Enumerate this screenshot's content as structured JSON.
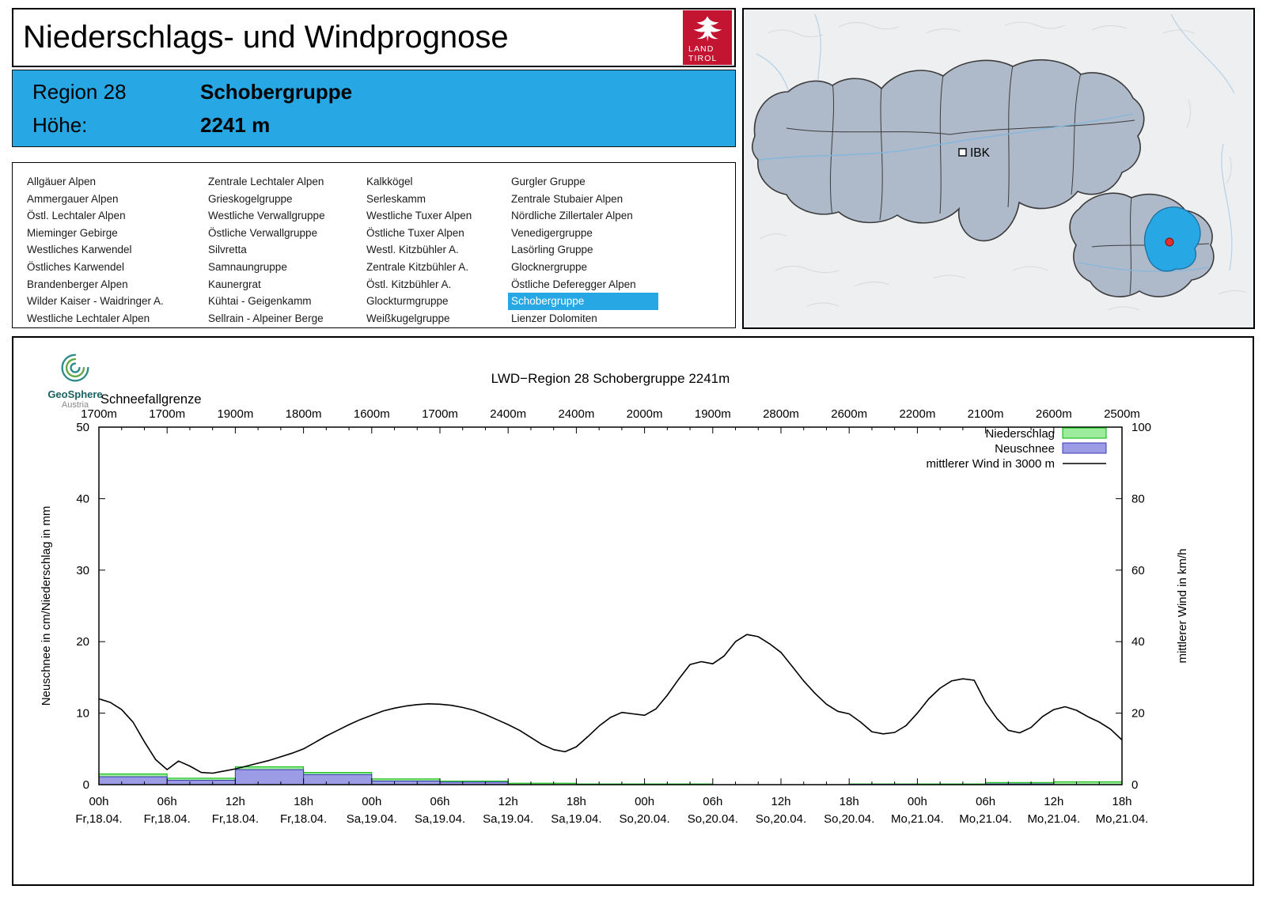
{
  "colors": {
    "accent": "#27A7E3",
    "brand_red": "#C31432"
  },
  "header": {
    "title": "Niederschlags- und Windprognose",
    "logo": {
      "line1": "LAND",
      "line2": "TIROL"
    }
  },
  "region_info": {
    "region_label": "Region 28",
    "region_name": "Schobergruppe",
    "altitude_label": "Höhe:",
    "altitude_value": "2241 m"
  },
  "region_list": {
    "selected": "Schobergruppe",
    "columns": [
      [
        "Allgäuer Alpen",
        "Ammergauer Alpen",
        "Östl. Lechtaler Alpen",
        "Mieminger Gebirge",
        "Westliches Karwendel",
        "Östliches Karwendel",
        "Brandenberger Alpen",
        "Wilder Kaiser - Waidringer A.",
        "Westliche Lechtaler Alpen"
      ],
      [
        "Zentrale Lechtaler Alpen",
        "Grieskogelgruppe",
        "Westliche Verwallgruppe",
        "Östliche Verwallgruppe",
        "Silvretta",
        "Samnaungruppe",
        "Kaunergrat",
        "Kühtai - Geigenkamm",
        "Sellrain - Alpeiner Berge"
      ],
      [
        "Kalkkögel",
        "Serleskamm",
        "Westliche Tuxer Alpen",
        "Östliche Tuxer Alpen",
        "Westl. Kitzbühler A.",
        "Zentrale Kitzbühler A.",
        "Östl. Kitzbühler A.",
        "Glockturmgruppe",
        "Weißkugelgruppe"
      ],
      [
        "Gurgler Gruppe",
        "Zentrale Stubaier Alpen",
        "Nördliche Zillertaler Alpen",
        "Venedigergruppe",
        "Lasörling Gruppe",
        "Glocknergruppe",
        "Östliche Deferegger Alpen",
        "Schobergruppe",
        "Lienzer Dolomiten"
      ]
    ]
  },
  "map": {
    "city_label": "IBK"
  },
  "geosphere": {
    "name": "GeoSphere",
    "country": "Austria"
  },
  "chart_data": {
    "type": "composite",
    "title": "LWD−Region 28 Schobergruppe 2241m",
    "grid": false,
    "legend_position": "top-right",
    "snowline": {
      "label": "Schneefallgrenze",
      "values": [
        "1700m",
        "1700m",
        "1900m",
        "1800m",
        "1600m",
        "1700m",
        "2400m",
        "2400m",
        "2000m",
        "1900m",
        "2800m",
        "2600m",
        "2200m",
        "2100m",
        "2600m",
        "2500m"
      ]
    },
    "x_ticks": {
      "time_labels": [
        "00h",
        "06h",
        "12h",
        "18h",
        "00h",
        "06h",
        "12h",
        "18h",
        "00h",
        "06h",
        "12h",
        "18h",
        "00h",
        "06h",
        "12h",
        "18h"
      ],
      "day_labels": [
        "Fr,18.04.",
        "Fr,18.04.",
        "Fr,18.04.",
        "Fr,18.04.",
        "Sa,19.04.",
        "Sa,19.04.",
        "Sa,19.04.",
        "Sa,19.04.",
        "So,20.04.",
        "So,20.04.",
        "So,20.04.",
        "So,20.04.",
        "Mo,21.04.",
        "Mo,21.04.",
        "Mo,21.04.",
        "Mo,21.04."
      ]
    },
    "y_left": {
      "label": "Neuschnee in cm/Niederschlag in mm",
      "min": 0,
      "max": 50,
      "ticks": [
        0,
        10,
        20,
        30,
        40,
        50
      ]
    },
    "y_right": {
      "label": "mittlerer Wind in km/h",
      "min": 0,
      "max": 100,
      "ticks": [
        0,
        20,
        40,
        60,
        80,
        100
      ]
    },
    "legend": [
      {
        "label": "Niederschlag",
        "type": "bar",
        "fill": "#9DEB9D",
        "border": "#00B400"
      },
      {
        "label": "Neuschnee",
        "type": "bar",
        "fill": "#9C9CE6",
        "border": "#3A3AB4"
      },
      {
        "label": "mittlerer Wind in 3000 m",
        "type": "line",
        "color": "#000000"
      }
    ],
    "series": {
      "precip_mm_6h": [
        1.5,
        0.9,
        2.5,
        1.7,
        0.8,
        0.5,
        0.2,
        0.1,
        0.1,
        0,
        0,
        0.1,
        0.1,
        0.3,
        0.4
      ],
      "neuschnee_cm_6h": [
        1.1,
        0.6,
        2.1,
        1.4,
        0.5,
        0.35,
        0,
        0,
        0,
        0,
        0,
        0.05,
        0,
        0.1,
        0
      ],
      "wind_kmh_hourly": [
        24,
        23,
        21,
        17.5,
        12,
        7,
        4.2,
        6.6,
        5.2,
        3.4,
        3.2,
        3.8,
        4.4,
        5.2,
        6.0,
        6.8,
        7.8,
        8.8,
        10.0,
        11.8,
        13.6,
        15.2,
        16.8,
        18.2,
        19.4,
        20.6,
        21.4,
        22.0,
        22.4,
        22.6,
        22.5,
        22.2,
        21.6,
        20.8,
        19.6,
        18.2,
        16.8,
        15.2,
        13.2,
        11.2,
        9.8,
        9.2,
        10.6,
        13.4,
        16.4,
        18.8,
        20.2,
        19.8,
        19.4,
        21.2,
        25.0,
        29.5,
        33.6,
        34.4,
        33.8,
        36.0,
        40.0,
        42.0,
        41.4,
        39.4,
        37.0,
        33.0,
        29.0,
        25.5,
        22.5,
        20.5,
        19.8,
        17.5,
        14.8,
        14.2,
        14.6,
        16.5,
        20.0,
        24.0,
        27.0,
        29.0,
        29.6,
        29.2,
        23.0,
        18.5,
        15.2,
        14.5,
        16.0,
        19.0,
        21.0,
        21.8,
        20.8,
        19.0,
        17.5,
        15.5,
        12.5
      ]
    }
  }
}
